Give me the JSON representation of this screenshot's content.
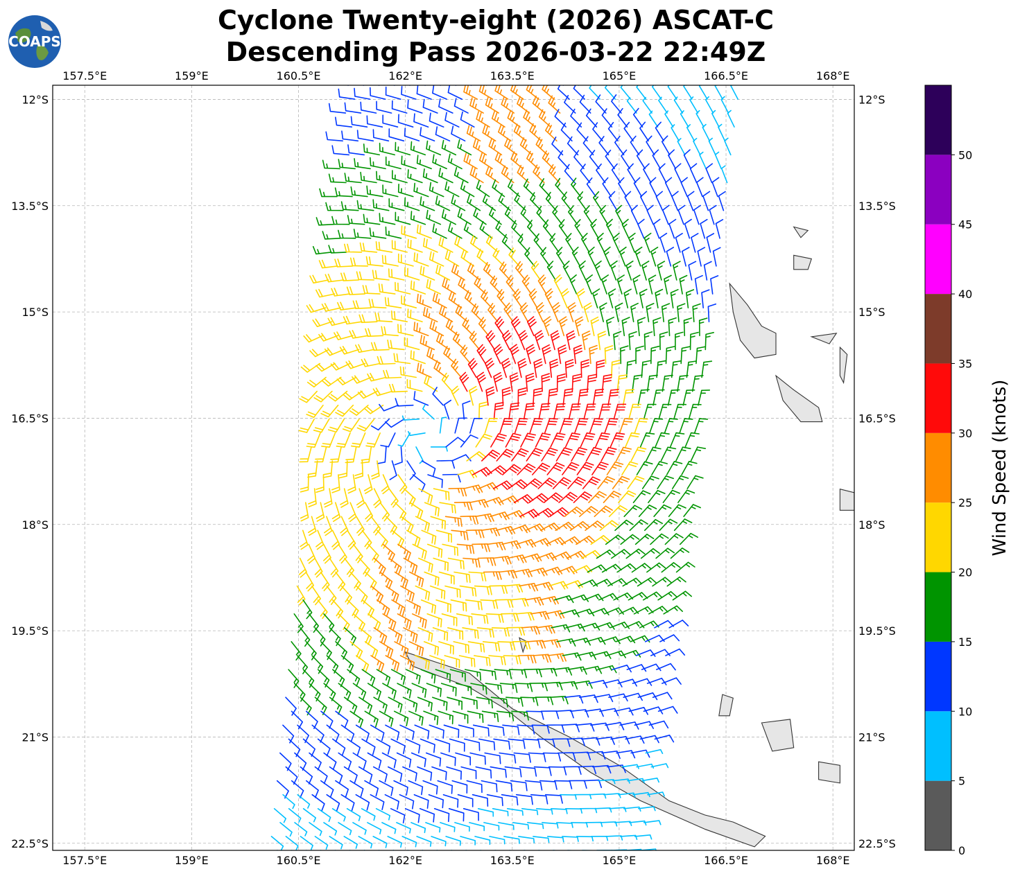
{
  "header": {
    "line1": "Cyclone Twenty-eight (2026) ASCAT-C",
    "line2": "Descending Pass 2026-03-22 22:49Z"
  },
  "logo": {
    "text": "COAPS",
    "icon": "globe-icon"
  },
  "map": {
    "lon_range": [
      157.05,
      168.3
    ],
    "lat_range": [
      -22.6,
      -11.8
    ],
    "lon_ticks": [
      {
        "value": 157.5,
        "label": "157.5°E"
      },
      {
        "value": 159.0,
        "label": "159°E"
      },
      {
        "value": 160.5,
        "label": "160.5°E"
      },
      {
        "value": 162.0,
        "label": "162°E"
      },
      {
        "value": 163.5,
        "label": "163.5°E"
      },
      {
        "value": 165.0,
        "label": "165°E"
      },
      {
        "value": 166.5,
        "label": "166.5°E"
      },
      {
        "value": 168.0,
        "label": "168°E"
      }
    ],
    "lat_ticks": [
      {
        "value": -12.0,
        "label": "12°S"
      },
      {
        "value": -13.5,
        "label": "13.5°S"
      },
      {
        "value": -15.0,
        "label": "15°S"
      },
      {
        "value": -16.5,
        "label": "16.5°S"
      },
      {
        "value": -18.0,
        "label": "18°S"
      },
      {
        "value": -19.5,
        "label": "19.5°S"
      },
      {
        "value": -21.0,
        "label": "21°S"
      },
      {
        "value": -22.5,
        "label": "22.5°S"
      }
    ],
    "grid": true,
    "cyclone_center": {
      "lon": 162.3,
      "lat": -16.75
    },
    "landmasses": [
      {
        "name": "New Caledonia",
        "points": [
          [
            162.0,
            -19.8
          ],
          [
            162.9,
            -20.1
          ],
          [
            163.5,
            -20.6
          ],
          [
            164.3,
            -21.0
          ],
          [
            165.0,
            -21.4
          ],
          [
            165.7,
            -21.9
          ],
          [
            166.2,
            -22.1
          ],
          [
            166.6,
            -22.2
          ],
          [
            167.05,
            -22.4
          ],
          [
            166.9,
            -22.55
          ],
          [
            166.2,
            -22.3
          ],
          [
            165.3,
            -21.9
          ],
          [
            164.6,
            -21.5
          ],
          [
            163.9,
            -21.0
          ],
          [
            163.4,
            -20.6
          ],
          [
            162.9,
            -20.3
          ],
          [
            162.1,
            -20.0
          ]
        ]
      },
      {
        "name": "Espiritu Santo",
        "points": [
          [
            166.55,
            -14.6
          ],
          [
            166.8,
            -14.9
          ],
          [
            167.0,
            -15.2
          ],
          [
            167.2,
            -15.3
          ],
          [
            167.2,
            -15.6
          ],
          [
            166.9,
            -15.65
          ],
          [
            166.7,
            -15.4
          ],
          [
            166.6,
            -15.0
          ]
        ]
      },
      {
        "name": "Malakula",
        "points": [
          [
            167.2,
            -15.9
          ],
          [
            167.45,
            -16.1
          ],
          [
            167.8,
            -16.35
          ],
          [
            167.85,
            -16.55
          ],
          [
            167.55,
            -16.55
          ],
          [
            167.3,
            -16.25
          ]
        ]
      },
      {
        "name": "Efate",
        "points": [
          [
            168.1,
            -17.5
          ],
          [
            168.3,
            -17.55
          ],
          [
            168.3,
            -17.8
          ],
          [
            168.1,
            -17.8
          ]
        ]
      },
      {
        "name": "Lifou",
        "points": [
          [
            167.0,
            -20.8
          ],
          [
            167.4,
            -20.75
          ],
          [
            167.45,
            -21.15
          ],
          [
            167.15,
            -21.2
          ]
        ]
      },
      {
        "name": "Mare",
        "points": [
          [
            167.8,
            -21.35
          ],
          [
            168.1,
            -21.4
          ],
          [
            168.1,
            -21.65
          ],
          [
            167.8,
            -21.6
          ]
        ]
      },
      {
        "name": "Ouvea",
        "points": [
          [
            166.45,
            -20.4
          ],
          [
            166.6,
            -20.45
          ],
          [
            166.55,
            -20.7
          ],
          [
            166.4,
            -20.7
          ]
        ]
      },
      {
        "name": "Gaua",
        "points": [
          [
            167.45,
            -14.2
          ],
          [
            167.7,
            -14.25
          ],
          [
            167.65,
            -14.4
          ],
          [
            167.45,
            -14.4
          ]
        ]
      },
      {
        "name": "Vanua Lava",
        "points": [
          [
            167.45,
            -13.8
          ],
          [
            167.65,
            -13.85
          ],
          [
            167.55,
            -13.95
          ]
        ]
      },
      {
        "name": "Ambae",
        "points": [
          [
            167.7,
            -15.35
          ],
          [
            168.05,
            -15.3
          ],
          [
            167.95,
            -15.45
          ]
        ]
      },
      {
        "name": "Pentecost",
        "points": [
          [
            168.1,
            -15.5
          ],
          [
            168.2,
            -15.6
          ],
          [
            168.15,
            -16.0
          ],
          [
            168.1,
            -15.9
          ]
        ]
      },
      {
        "name": "Belep",
        "points": [
          [
            163.6,
            -19.6
          ],
          [
            163.7,
            -19.65
          ],
          [
            163.65,
            -19.8
          ]
        ]
      }
    ]
  },
  "swath": {
    "top_lat": -11.8,
    "bottom_lat": -22.6,
    "west_top_lon": 161.2,
    "west_bottom_lon": 160.1,
    "east_top_lon": 166.8,
    "east_bottom_lon": 165.4
  },
  "colorbar": {
    "label": "Wind Speed (knots)",
    "range": [
      0,
      55
    ],
    "ticks": [
      0,
      5,
      10,
      15,
      20,
      25,
      30,
      35,
      40,
      45,
      50
    ],
    "segments": [
      {
        "from": 0,
        "to": 5,
        "color": "#5a5a5a"
      },
      {
        "from": 5,
        "to": 10,
        "color": "#00bfff"
      },
      {
        "from": 10,
        "to": 15,
        "color": "#0037ff"
      },
      {
        "from": 15,
        "to": 20,
        "color": "#009400"
      },
      {
        "from": 20,
        "to": 25,
        "color": "#ffd700"
      },
      {
        "from": 25,
        "to": 30,
        "color": "#ff8c00"
      },
      {
        "from": 30,
        "to": 35,
        "color": "#ff0a0a"
      },
      {
        "from": 35,
        "to": 40,
        "color": "#7d3b2a"
      },
      {
        "from": 40,
        "to": 45,
        "color": "#ff00ff"
      },
      {
        "from": 45,
        "to": 50,
        "color": "#8b00c0"
      },
      {
        "from": 50,
        "to": 55,
        "color": "#2d005a"
      }
    ]
  }
}
